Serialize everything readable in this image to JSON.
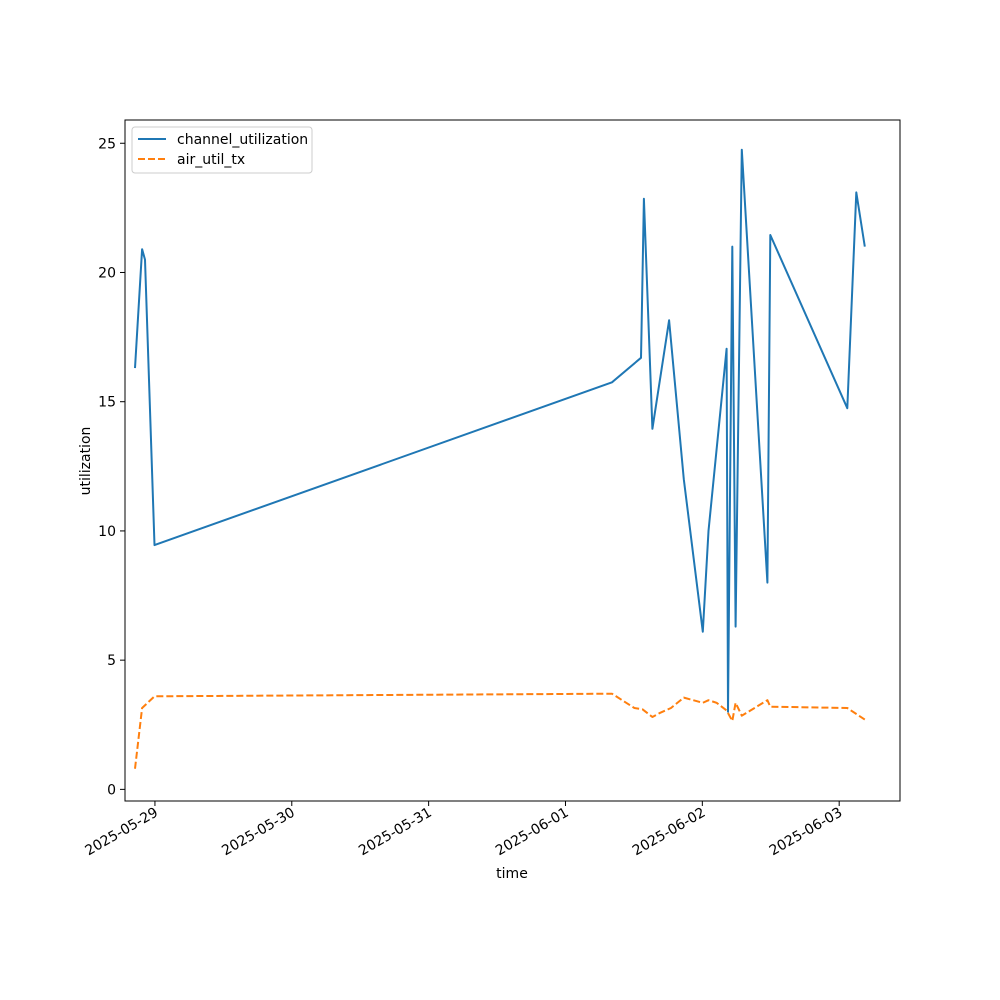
{
  "chart_data": {
    "type": "line",
    "xlabel": "time",
    "ylabel": "utilization",
    "xlim": [
      "2025-05-28T18:45",
      "2025-06-03T10:40"
    ],
    "ylim": [
      -0.45,
      25.9
    ],
    "x_ticks": [
      "2025-05-29",
      "2025-05-30",
      "2025-05-31",
      "2025-06-01",
      "2025-06-02",
      "2025-06-03"
    ],
    "y_ticks": [
      0,
      5,
      10,
      15,
      20,
      25
    ],
    "grid": false,
    "legend_position": "upper-left",
    "series": [
      {
        "name": "channel_utilization",
        "color": "#1f77b4",
        "style": "solid",
        "points": [
          [
            "2025-05-28T20:30",
            16.3
          ],
          [
            "2025-05-28T21:45",
            20.9
          ],
          [
            "2025-05-28T22:15",
            20.5
          ],
          [
            "2025-05-28T23:55",
            9.45
          ],
          [
            "2025-06-01T08:10",
            15.75
          ],
          [
            "2025-06-01T13:15",
            16.7
          ],
          [
            "2025-06-01T13:20",
            17.7
          ],
          [
            "2025-06-01T13:45",
            22.85
          ],
          [
            "2025-06-01T15:15",
            13.95
          ],
          [
            "2025-06-01T18:10",
            18.15
          ],
          [
            "2025-06-01T20:45",
            12.0
          ],
          [
            "2025-06-02T00:05",
            6.1
          ],
          [
            "2025-06-02T01:05",
            10.0
          ],
          [
            "2025-06-02T04:15",
            17.05
          ],
          [
            "2025-06-02T04:30",
            3.0
          ],
          [
            "2025-06-02T05:15",
            21.0
          ],
          [
            "2025-06-02T05:50",
            6.3
          ],
          [
            "2025-06-02T06:55",
            24.75
          ],
          [
            "2025-06-02T11:25",
            8.0
          ],
          [
            "2025-06-02T11:55",
            21.45
          ],
          [
            "2025-06-03T01:25",
            14.75
          ],
          [
            "2025-06-03T03:00",
            23.1
          ],
          [
            "2025-06-03T04:30",
            21.0
          ]
        ]
      },
      {
        "name": "air_util_tx",
        "color": "#ff7f0e",
        "style": "dashed",
        "points": [
          [
            "2025-05-28T20:30",
            0.8
          ],
          [
            "2025-05-28T21:45",
            3.15
          ],
          [
            "2025-05-28T23:55",
            3.6
          ],
          [
            "2025-06-01T08:10",
            3.7
          ],
          [
            "2025-06-01T12:05",
            3.15
          ],
          [
            "2025-06-01T13:30",
            3.1
          ],
          [
            "2025-06-01T15:15",
            2.8
          ],
          [
            "2025-06-01T16:30",
            2.95
          ],
          [
            "2025-06-01T18:30",
            3.15
          ],
          [
            "2025-06-01T20:45",
            3.55
          ],
          [
            "2025-06-02T00:05",
            3.35
          ],
          [
            "2025-06-02T01:05",
            3.45
          ],
          [
            "2025-06-02T02:30",
            3.35
          ],
          [
            "2025-06-02T04:15",
            3.05
          ],
          [
            "2025-06-02T05:15",
            2.65
          ],
          [
            "2025-06-02T05:50",
            3.35
          ],
          [
            "2025-06-02T06:55",
            2.85
          ],
          [
            "2025-06-02T11:25",
            3.45
          ],
          [
            "2025-06-02T11:55",
            3.2
          ],
          [
            "2025-06-03T01:25",
            3.15
          ],
          [
            "2025-06-03T04:30",
            2.7
          ]
        ]
      }
    ]
  }
}
